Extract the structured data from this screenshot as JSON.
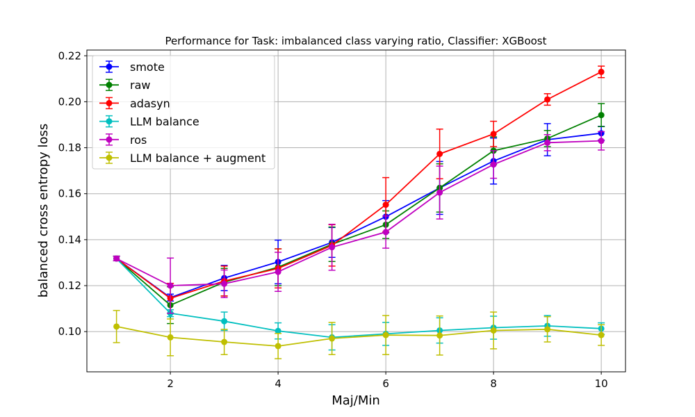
{
  "chart_data": {
    "type": "line",
    "title": "Performance for Task: imbalanced class varying ratio, Classifier: XGBoost",
    "xlabel": "Maj/Min",
    "ylabel": "balanced cross entropy loss",
    "x": [
      1,
      2,
      3,
      4,
      5,
      6,
      7,
      8,
      9,
      10
    ],
    "xlim": [
      0.45,
      10.45
    ],
    "ylim": [
      0.0825,
      0.2225
    ],
    "xticks": [
      2,
      4,
      6,
      8,
      10
    ],
    "xtick_labels": [
      "2",
      "4",
      "6",
      "8",
      "10"
    ],
    "yticks": [
      0.1,
      0.12,
      0.14,
      0.16,
      0.18,
      0.2,
      0.22
    ],
    "ytick_labels": [
      "0.10",
      "0.12",
      "0.14",
      "0.16",
      "0.18",
      "0.20",
      "0.22"
    ],
    "grid": true,
    "legend_position": "top-left",
    "series": [
      {
        "name": "smote",
        "color": "#0000ff",
        "values": [
          0.1318,
          0.1148,
          0.1233,
          0.1303,
          0.1388,
          0.15,
          0.1625,
          0.1742,
          0.1835,
          0.1863
        ],
        "errors": [
          0.001,
          0.0015,
          0.0055,
          0.0095,
          0.0065,
          0.007,
          0.0115,
          0.01,
          0.007,
          0.003
        ]
      },
      {
        "name": "raw",
        "color": "#008000",
        "values": [
          0.1318,
          0.1115,
          0.1215,
          0.128,
          0.138,
          0.1465,
          0.1625,
          0.1787,
          0.184,
          0.1942
        ],
        "errors": [
          0.001,
          0.008,
          0.006,
          0.008,
          0.0075,
          0.006,
          0.0105,
          0.006,
          0.0035,
          0.005
        ]
      },
      {
        "name": "adasyn",
        "color": "#ff0000",
        "values": [
          0.1318,
          0.1145,
          0.122,
          0.1275,
          0.1375,
          0.1552,
          0.1773,
          0.186,
          0.201,
          0.213
        ],
        "errors": [
          0.001,
          0.0065,
          0.0065,
          0.0085,
          0.009,
          0.0118,
          0.0108,
          0.0055,
          0.0025,
          0.0025
        ]
      },
      {
        "name": "LLM balance",
        "color": "#00bfbf",
        "values": [
          0.1318,
          0.108,
          0.1045,
          0.1003,
          0.0975,
          0.099,
          0.1005,
          0.1017,
          0.1025,
          0.1013
        ],
        "errors": [
          0.001,
          0.0015,
          0.004,
          0.0035,
          0.0055,
          0.005,
          0.0055,
          0.005,
          0.0045,
          0.0025
        ]
      },
      {
        "name": "ros",
        "color": "#bf00bf",
        "values": [
          0.1318,
          0.12,
          0.1208,
          0.126,
          0.1367,
          0.1433,
          0.1605,
          0.1727,
          0.1822,
          0.183
        ],
        "errors": [
          0.001,
          0.012,
          0.006,
          0.0085,
          0.01,
          0.007,
          0.0115,
          0.006,
          0.0035,
          0.004
        ]
      },
      {
        "name": "LLM balance + augment",
        "color": "#bfbf00",
        "values": [
          0.1022,
          0.0975,
          0.0955,
          0.0937,
          0.097,
          0.0985,
          0.0983,
          0.1005,
          0.101,
          0.0985
        ],
        "errors": [
          0.007,
          0.008,
          0.0055,
          0.0055,
          0.007,
          0.0085,
          0.0085,
          0.008,
          0.0055,
          0.0045
        ]
      }
    ]
  }
}
